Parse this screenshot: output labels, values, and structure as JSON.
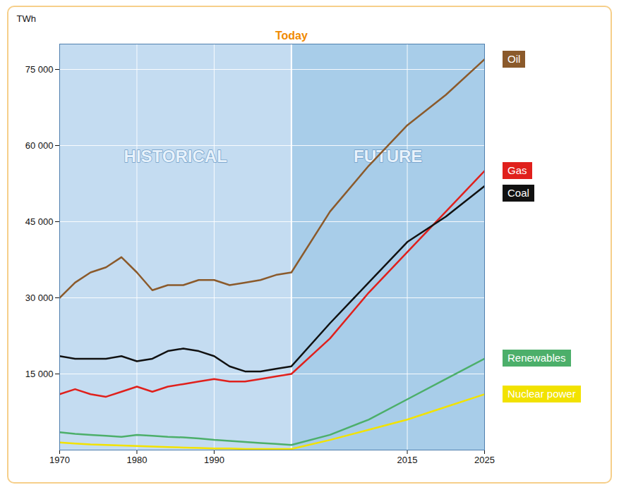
{
  "chart_data": {
    "type": "line",
    "y_label": "TWh",
    "x": [
      1970,
      1972,
      1974,
      1976,
      1978,
      1980,
      1982,
      1984,
      1986,
      1988,
      1990,
      1992,
      1994,
      1996,
      1998,
      2000,
      2005,
      2010,
      2015,
      2020,
      2025
    ],
    "xlim": [
      1970,
      2025
    ],
    "xticks": [
      1970,
      1980,
      1990,
      2015,
      2025
    ],
    "ylim": [
      0,
      80000
    ],
    "yticks": [
      {
        "value": 15000,
        "label": "15 000"
      },
      {
        "value": 30000,
        "label": "30 000"
      },
      {
        "value": 45000,
        "label": "45 000"
      },
      {
        "value": 60000,
        "label": "60 000"
      },
      {
        "value": 75000,
        "label": "75 000"
      }
    ],
    "grid": true,
    "legend": "right",
    "annotations": [
      {
        "text": "Today",
        "x": 2000
      },
      {
        "text": "HISTORICAL"
      },
      {
        "text": "FUTURE"
      }
    ],
    "series": [
      {
        "name": "Oil",
        "color": "#8b5a2b",
        "values": [
          30000,
          33000,
          35000,
          36000,
          38000,
          35000,
          31500,
          32500,
          32500,
          33500,
          33500,
          32500,
          33000,
          33500,
          34500,
          35000,
          47000,
          56000,
          64000,
          70000,
          77000
        ]
      },
      {
        "name": "Gas",
        "color": "#e0201c",
        "values": [
          11000,
          12000,
          11000,
          10500,
          11500,
          12500,
          11500,
          12500,
          13000,
          13500,
          14000,
          13500,
          13500,
          14000,
          14500,
          15000,
          22000,
          31000,
          39000,
          47000,
          55000
        ]
      },
      {
        "name": "Coal",
        "color": "#111111",
        "values": [
          18500,
          18000,
          18000,
          18000,
          18500,
          17500,
          18000,
          19500,
          20000,
          19500,
          18500,
          16500,
          15500,
          15500,
          16000,
          16500,
          25000,
          33000,
          41000,
          46000,
          52000
        ]
      },
      {
        "name": "Renewables",
        "color": "#4caf6a",
        "values": [
          3500,
          3200,
          3000,
          2800,
          2600,
          3000,
          2800,
          2600,
          2500,
          2300,
          2000,
          1800,
          1600,
          1400,
          1200,
          1000,
          3000,
          6000,
          10000,
          14000,
          18000
        ]
      },
      {
        "name": "Nuclear power",
        "color": "#f2e200",
        "values": [
          1500,
          1300,
          1100,
          1000,
          900,
          800,
          700,
          600,
          500,
          400,
          300,
          300,
          200,
          200,
          200,
          200,
          2000,
          4000,
          6000,
          8500,
          11000
        ]
      }
    ]
  }
}
